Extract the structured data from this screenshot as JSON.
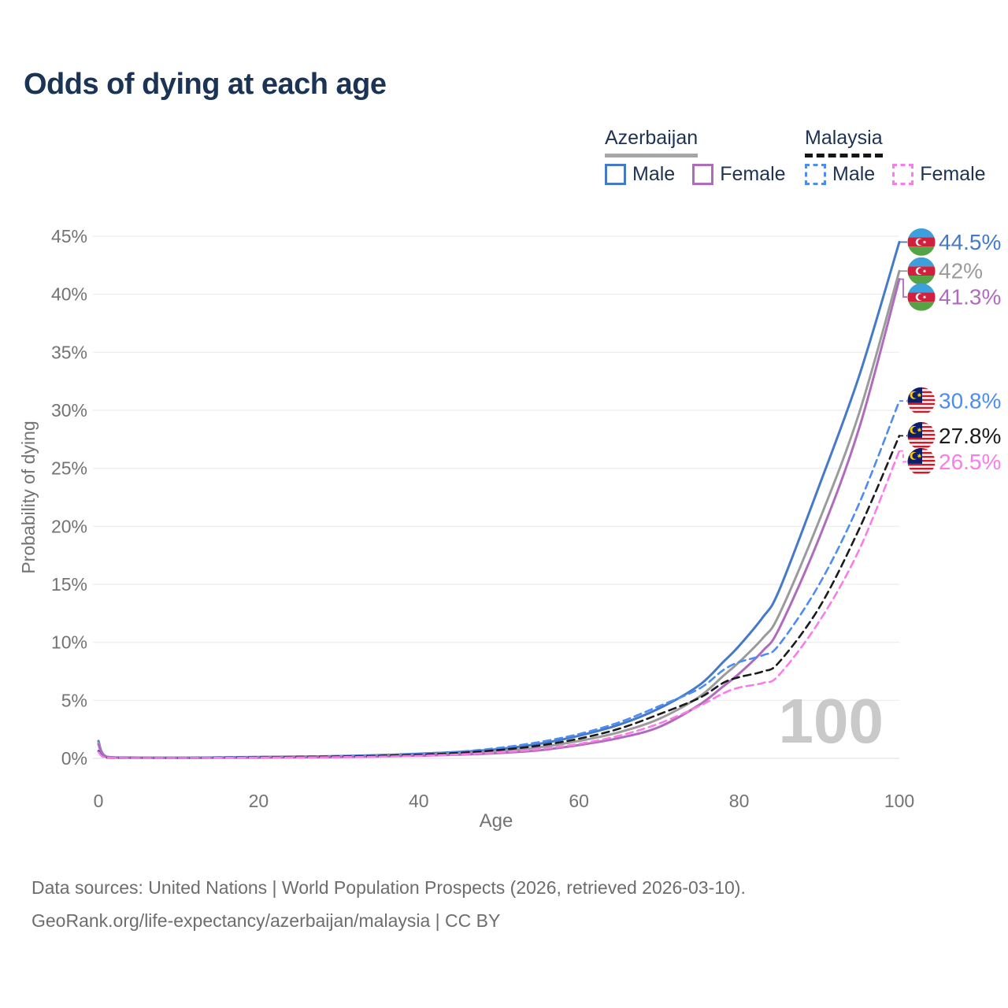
{
  "title": "Odds of dying at each age",
  "legend": {
    "groups": [
      {
        "name": "Azerbaijan",
        "underline_style": "solid",
        "underline_color": "#a6a6a6",
        "items": [
          {
            "label": "Male",
            "color": "#4579ca",
            "dashed": false
          },
          {
            "label": "Female",
            "color": "#af6cbd",
            "dashed": false
          }
        ]
      },
      {
        "name": "Malaysia",
        "underline_style": "dashed",
        "underline_color": "#151515",
        "items": [
          {
            "label": "Male",
            "color": "#4d8cf3",
            "dashed": true
          },
          {
            "label": "Female",
            "color": "#fa7ce8",
            "dashed": true
          }
        ]
      }
    ]
  },
  "chart_data": {
    "type": "line",
    "title": "Odds of dying at each age",
    "xlabel": "Age",
    "ylabel": "Probability of dying",
    "xlim": [
      0,
      100
    ],
    "ylim": [
      0,
      45
    ],
    "xticks": [
      0,
      20,
      40,
      60,
      80,
      100
    ],
    "yticks": [
      0,
      5,
      10,
      15,
      20,
      25,
      30,
      35,
      40,
      45
    ],
    "ytick_suffix": "%",
    "grid": "horizontal",
    "legend_position": "top-right",
    "watermark": "100",
    "ages": [
      0,
      1,
      5,
      10,
      15,
      20,
      25,
      30,
      35,
      40,
      45,
      50,
      55,
      60,
      65,
      70,
      75,
      78,
      80,
      83,
      85,
      90,
      95,
      100
    ],
    "series": [
      {
        "name": "Azerbaijan Male",
        "country": "Azerbaijan",
        "sex": "Male",
        "flag_icon": "azerbaijan-flag-icon",
        "color": "#4579ca",
        "dashed": false,
        "end_label": "44.5%",
        "end_value": 44.5,
        "values": [
          1.5,
          0.15,
          0.07,
          0.06,
          0.08,
          0.12,
          0.15,
          0.2,
          0.28,
          0.4,
          0.55,
          0.8,
          1.25,
          1.95,
          2.9,
          4.3,
          6.3,
          8.3,
          9.7,
          12.2,
          14.5,
          23.5,
          33.0,
          44.5
        ]
      },
      {
        "name": "Azerbaijan Both Sexes",
        "country": "Azerbaijan",
        "sex": "Both",
        "flag_icon": "azerbaijan-flag-icon",
        "color": "#9b9b9b",
        "dashed": false,
        "end_label": "42%",
        "end_value": 42,
        "values": [
          1.35,
          0.13,
          0.06,
          0.05,
          0.07,
          0.09,
          0.12,
          0.16,
          0.22,
          0.31,
          0.43,
          0.62,
          0.95,
          1.5,
          2.25,
          3.4,
          5.3,
          7.1,
          8.3,
          10.4,
          12.4,
          20.5,
          29.8,
          42.0
        ]
      },
      {
        "name": "Azerbaijan Female",
        "country": "Azerbaijan",
        "sex": "Female",
        "flag_icon": "azerbaijan-flag-icon",
        "color": "#af6cbd",
        "dashed": false,
        "end_label": "41.3%",
        "end_value": 41.3,
        "values": [
          1.2,
          0.11,
          0.05,
          0.04,
          0.05,
          0.06,
          0.08,
          0.11,
          0.16,
          0.23,
          0.32,
          0.46,
          0.7,
          1.15,
          1.75,
          2.7,
          4.6,
          6.2,
          7.3,
          9.3,
          11.2,
          19.0,
          28.5,
          41.3
        ]
      },
      {
        "name": "Malaysia Male",
        "country": "Malaysia",
        "sex": "Male",
        "flag_icon": "malaysia-flag-icon",
        "color": "#4d8cf3",
        "dashed": true,
        "end_label": "30.8%",
        "end_value": 30.8,
        "values": [
          0.65,
          0.06,
          0.04,
          0.04,
          0.08,
          0.13,
          0.16,
          0.2,
          0.27,
          0.38,
          0.58,
          0.9,
          1.4,
          2.1,
          3.1,
          4.5,
          6.0,
          7.6,
          8.3,
          8.9,
          9.8,
          15.0,
          22.0,
          30.8
        ]
      },
      {
        "name": "Malaysia Both Sexes",
        "country": "Malaysia",
        "sex": "Both",
        "flag_icon": "malaysia-flag-icon",
        "color": "#1b1b1b",
        "dashed": true,
        "end_label": "27.8%",
        "end_value": 27.8,
        "values": [
          0.6,
          0.05,
          0.04,
          0.03,
          0.06,
          0.1,
          0.12,
          0.16,
          0.22,
          0.31,
          0.47,
          0.72,
          1.1,
          1.7,
          2.55,
          3.8,
          5.2,
          6.5,
          7.0,
          7.5,
          8.3,
          13.0,
          19.8,
          27.8
        ]
      },
      {
        "name": "Malaysia Female",
        "country": "Malaysia",
        "sex": "Female",
        "flag_icon": "malaysia-flag-icon",
        "color": "#fa7ce8",
        "dashed": true,
        "end_label": "26.5%",
        "end_value": 26.5,
        "values": [
          0.55,
          0.05,
          0.03,
          0.03,
          0.05,
          0.07,
          0.08,
          0.11,
          0.15,
          0.22,
          0.34,
          0.52,
          0.8,
          1.25,
          1.95,
          3.0,
          4.5,
          5.6,
          6.1,
          6.5,
          7.2,
          11.8,
          18.0,
          26.5
        ]
      }
    ]
  },
  "footer": {
    "line1": "Data sources: United Nations | World Population Prospects (2026, retrieved 2026-03-10).",
    "line2": "GeoRank.org/life-expectancy/azerbaijan/malaysia | CC BY"
  }
}
